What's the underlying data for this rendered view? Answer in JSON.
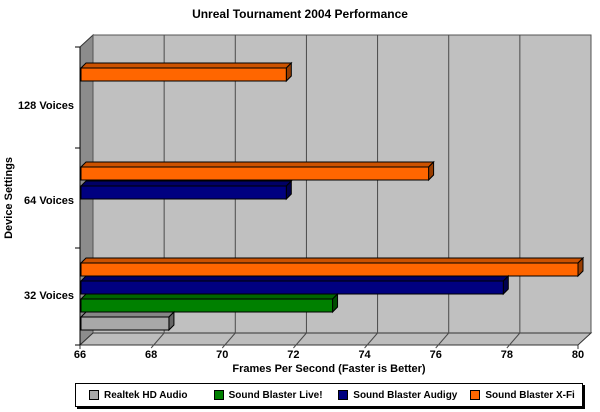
{
  "chart_data": {
    "type": "bar",
    "orientation": "horizontal",
    "style": "3d-clustered",
    "title": "Unreal Tournament 2004 Performance",
    "xlabel": "Frames Per Second (Faster is Better)",
    "ylabel": "Device Settings",
    "xlim": [
      66,
      80
    ],
    "xticks": [
      66,
      68,
      70,
      72,
      74,
      76,
      78,
      80
    ],
    "grid": true,
    "legend_position": "bottom",
    "plot_bg": "#C0C0C0",
    "floor_color": "#BDBDBD",
    "side_wall_color": "#8C8C8C",
    "categories": [
      "128 Voices",
      "64 Voices",
      "32 Voices"
    ],
    "series": [
      {
        "name": "Realtek HD Audio",
        "color": "#A8A8A8",
        "values": [
          null,
          null,
          68.5
        ]
      },
      {
        "name": "Sound Blaster Live!",
        "color": "#008000",
        "values": [
          null,
          null,
          73.1
        ]
      },
      {
        "name": "Sound Blaster Audigy",
        "color": "#000080",
        "values": [
          null,
          71.8,
          77.9
        ]
      },
      {
        "name": "Sound Blaster X-Fi",
        "color": "#FF6600",
        "values": [
          71.8,
          75.8,
          80.0
        ]
      }
    ]
  }
}
